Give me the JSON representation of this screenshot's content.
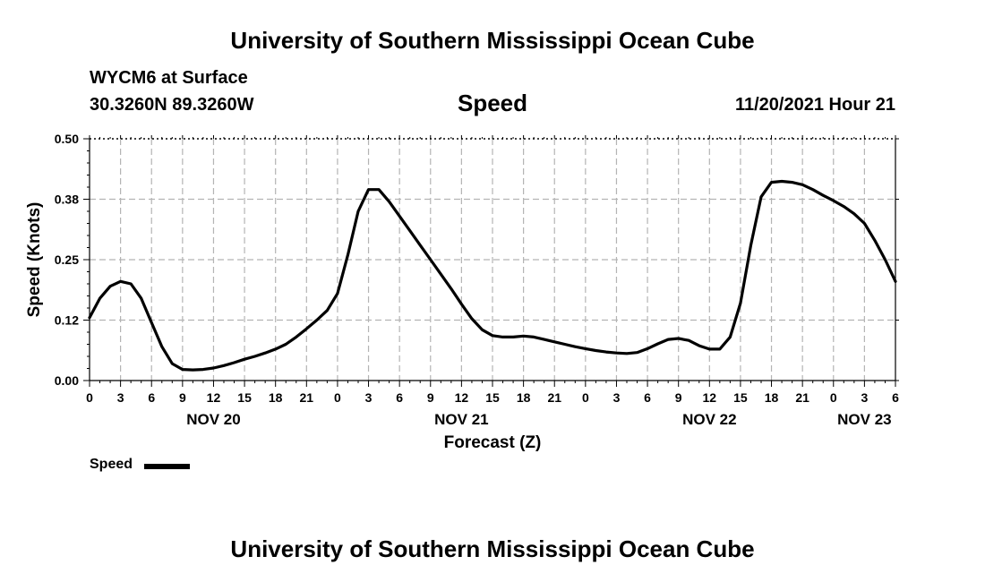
{
  "header": {
    "title": "University of Southern Mississippi Ocean Cube",
    "station": "WYCM6 at Surface",
    "coords": "30.3260N  89.3260W",
    "datetime": "11/20/2021 Hour 21",
    "footer_title": "University of Southern Mississippi Ocean Cube"
  },
  "legend": {
    "label": "Speed"
  },
  "chart_data": {
    "type": "line",
    "title": "Speed",
    "xlabel": "Forecast (Z)",
    "ylabel": "Speed (Knots)",
    "ylim": [
      0,
      0.5
    ],
    "yticks": [
      "0.00",
      "0.12",
      "0.25",
      "0.38",
      "0.50"
    ],
    "xlim": [
      0,
      78
    ],
    "xtick_labels": [
      "0",
      "3",
      "6",
      "9",
      "12",
      "15",
      "18",
      "21",
      "0",
      "3",
      "6",
      "9",
      "12",
      "15",
      "18",
      "21",
      "0",
      "3",
      "6",
      "9",
      "12",
      "15",
      "18",
      "21",
      "0",
      "3",
      "6"
    ],
    "date_labels": [
      {
        "label": "NOV 20",
        "x": 12
      },
      {
        "label": "NOV 21",
        "x": 36
      },
      {
        "label": "NOV 22",
        "x": 60
      },
      {
        "label": "NOV 23",
        "x": 75
      }
    ],
    "grid": true,
    "line_color": "#000000",
    "series": [
      {
        "name": "Speed",
        "x": [
          0,
          1,
          2,
          3,
          4,
          5,
          6,
          7,
          8,
          9,
          10,
          11,
          12,
          13,
          14,
          15,
          16,
          17,
          18,
          19,
          20,
          21,
          22,
          23,
          24,
          25,
          26,
          27,
          28,
          29,
          30,
          31,
          32,
          33,
          34,
          35,
          36,
          37,
          38,
          39,
          40,
          41,
          42,
          43,
          44,
          45,
          46,
          47,
          48,
          49,
          50,
          51,
          52,
          53,
          54,
          55,
          56,
          57,
          58,
          59,
          60,
          61,
          62,
          63,
          64,
          65,
          66,
          67,
          68,
          69,
          70,
          71,
          72,
          73,
          74,
          75,
          76,
          77,
          78
        ],
        "values": [
          0.13,
          0.17,
          0.195,
          0.205,
          0.2,
          0.17,
          0.12,
          0.07,
          0.035,
          0.023,
          0.022,
          0.023,
          0.026,
          0.031,
          0.037,
          0.044,
          0.05,
          0.057,
          0.065,
          0.075,
          0.09,
          0.107,
          0.125,
          0.145,
          0.18,
          0.26,
          0.35,
          0.395,
          0.395,
          0.37,
          0.34,
          0.31,
          0.28,
          0.25,
          0.22,
          0.19,
          0.158,
          0.128,
          0.105,
          0.093,
          0.09,
          0.09,
          0.092,
          0.09,
          0.085,
          0.08,
          0.075,
          0.07,
          0.066,
          0.062,
          0.059,
          0.057,
          0.056,
          0.058,
          0.066,
          0.076,
          0.085,
          0.087,
          0.083,
          0.072,
          0.065,
          0.065,
          0.09,
          0.16,
          0.28,
          0.38,
          0.41,
          0.412,
          0.41,
          0.405,
          0.395,
          0.383,
          0.372,
          0.36,
          0.345,
          0.325,
          0.29,
          0.25,
          0.205
        ]
      }
    ]
  }
}
